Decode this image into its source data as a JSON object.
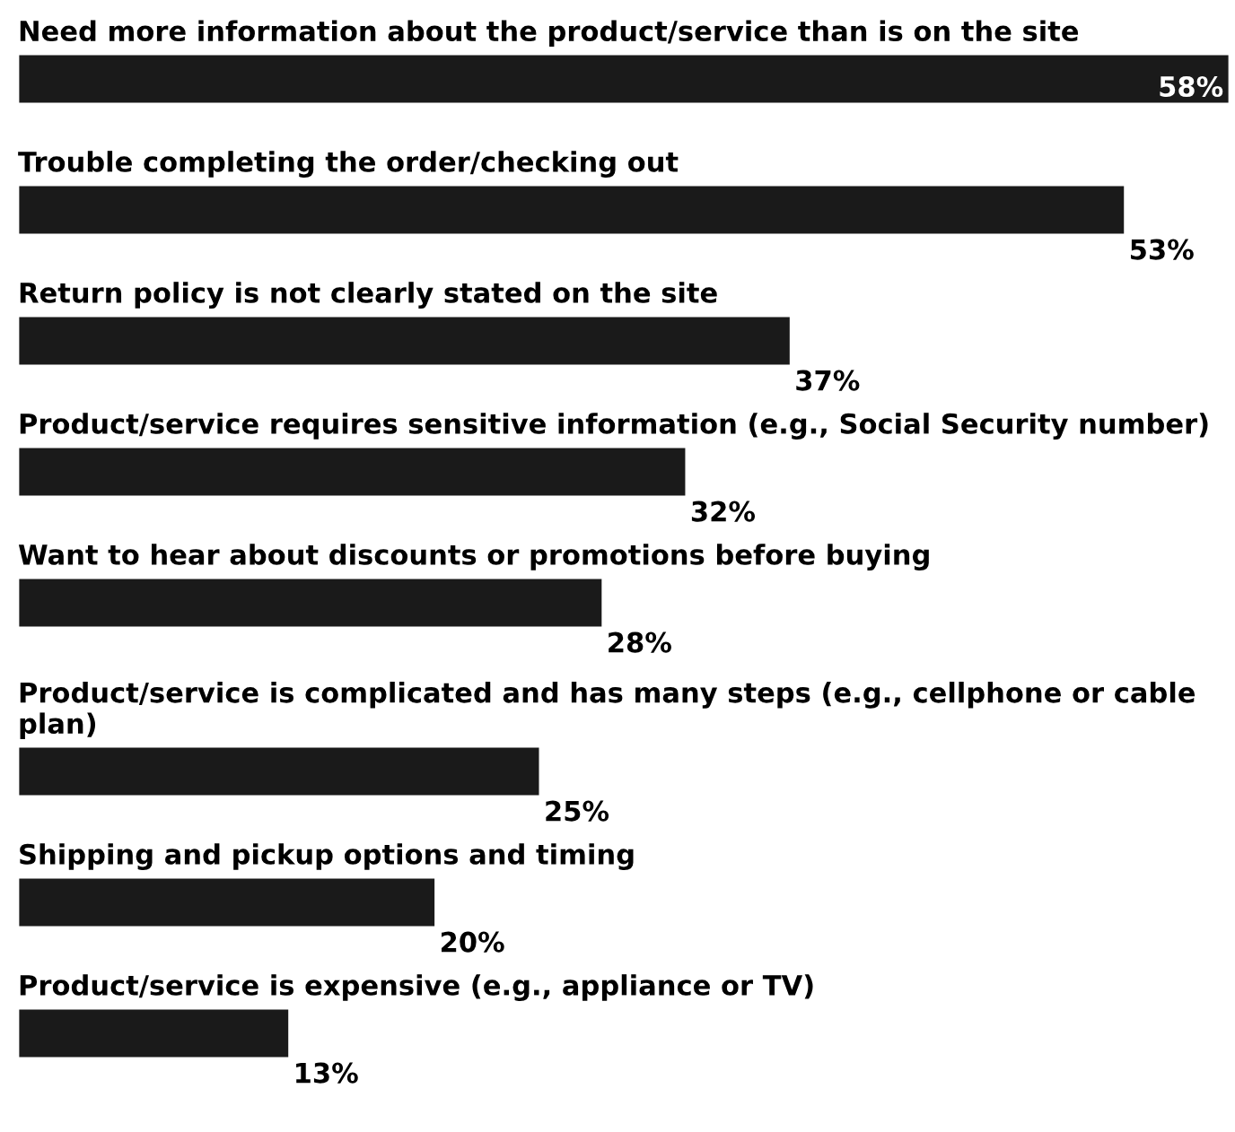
{
  "chart_data": {
    "type": "bar",
    "orientation": "horizontal",
    "color": "#1a1a1a",
    "categories": [
      "Need more information about the product/service than is on the site",
      "Trouble completing the order/checking out",
      "Return policy is not clearly stated on the site",
      "Product/service requires sensitive information (e.g., Social Security number)",
      "Want to hear about discounts or promotions before buying",
      "Product/service is complicated and has many steps (e.g., cellphone or cable plan)",
      "Shipping and pickup options and timing",
      "Product/service is expensive (e.g., appliance or TV)"
    ],
    "values": [
      58,
      53,
      37,
      32,
      28,
      25,
      20,
      13
    ],
    "value_labels": [
      "58%",
      "53%",
      "37%",
      "32%",
      "28%",
      "25%",
      "20%",
      "13%"
    ]
  }
}
